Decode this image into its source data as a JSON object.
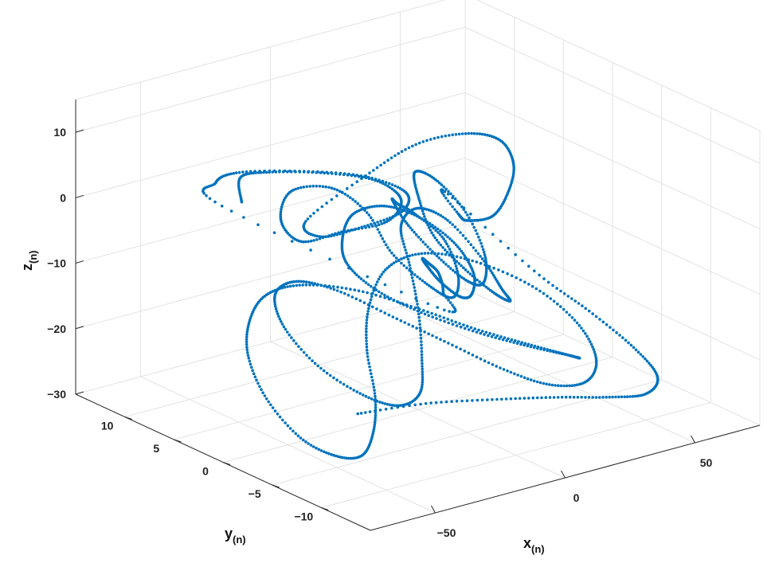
{
  "chart_data": {
    "type": "scatter",
    "title": "",
    "xlabel": "x",
    "xlabel_sub": "(n)",
    "ylabel": "y",
    "ylabel_sub": "(n)",
    "zlabel": "z",
    "zlabel_sub": "(n)",
    "xlim": [
      -75,
      75
    ],
    "ylim": [
      -15,
      15
    ],
    "zlim": [
      -30,
      15
    ],
    "x_ticks": [
      {
        "value": -50,
        "label": "−50"
      },
      {
        "value": 0,
        "label": "0"
      },
      {
        "value": 50,
        "label": "50"
      }
    ],
    "y_ticks": [
      {
        "value": 10,
        "label": "10"
      },
      {
        "value": 5,
        "label": "5"
      },
      {
        "value": 0,
        "label": "0"
      },
      {
        "value": -5,
        "label": "−5"
      },
      {
        "value": -10,
        "label": "−10"
      }
    ],
    "z_ticks": [
      {
        "value": 10,
        "label": "10"
      },
      {
        "value": 0,
        "label": "0"
      },
      {
        "value": -10,
        "label": "−10"
      },
      {
        "value": -20,
        "label": "−20"
      },
      {
        "value": -30,
        "label": "−30"
      }
    ],
    "grid": true,
    "view": "3d-box",
    "marker_color": "#0072BD",
    "series": [
      {
        "points_note_x_y_z": "",
        "points": [
          [
            -30,
            10,
            -2
          ],
          [
            -38,
            8,
            4
          ],
          [
            -42,
            4,
            8
          ],
          [
            -36,
            0,
            10
          ],
          [
            -24,
            -2,
            9
          ],
          [
            -14,
            -2,
            5
          ],
          [
            -12,
            0,
            0
          ],
          [
            -18,
            3,
            -3
          ],
          [
            -26,
            5,
            -5
          ],
          [
            -30,
            6,
            -2
          ],
          [
            -26,
            6,
            2
          ],
          [
            -18,
            4,
            3
          ],
          [
            -12,
            2,
            0
          ],
          [
            -10,
            0,
            -5
          ],
          [
            -4,
            -2,
            -9
          ],
          [
            2,
            -3,
            -11
          ],
          [
            8,
            -2,
            -9
          ],
          [
            10,
            0,
            -5
          ],
          [
            6,
            2,
            -2
          ],
          [
            0,
            2,
            0
          ],
          [
            -6,
            1,
            2
          ],
          [
            -8,
            -1,
            0
          ],
          [
            -4,
            -3,
            -4
          ],
          [
            4,
            -4,
            -8
          ],
          [
            14,
            -3,
            -10
          ],
          [
            22,
            -1,
            -8
          ],
          [
            26,
            2,
            -4
          ],
          [
            22,
            4,
            0
          ],
          [
            14,
            4,
            2
          ],
          [
            8,
            2,
            0
          ],
          [
            6,
            0,
            -4
          ],
          [
            10,
            -2,
            -8
          ],
          [
            18,
            -3,
            -12
          ],
          [
            28,
            -2,
            -15
          ],
          [
            36,
            1,
            -16
          ],
          [
            40,
            4,
            -14
          ],
          [
            38,
            7,
            -10
          ],
          [
            30,
            8,
            -8
          ],
          [
            20,
            7,
            -9
          ],
          [
            12,
            4,
            -12
          ],
          [
            4,
            1,
            -16
          ],
          [
            -6,
            -2,
            -20
          ],
          [
            -18,
            -5,
            -22
          ],
          [
            -30,
            -6,
            -22
          ],
          [
            -40,
            -5,
            -20
          ],
          [
            -46,
            -2,
            -17
          ],
          [
            -44,
            2,
            -14
          ],
          [
            -36,
            5,
            -12
          ],
          [
            -24,
            6,
            -12
          ],
          [
            -12,
            5,
            -14
          ],
          [
            -2,
            2,
            -17
          ],
          [
            8,
            -1,
            -20
          ],
          [
            18,
            -4,
            -23
          ],
          [
            28,
            -6,
            -25
          ],
          [
            38,
            -7,
            -25
          ],
          [
            46,
            -6,
            -23
          ],
          [
            50,
            -3,
            -20
          ],
          [
            48,
            1,
            -17
          ],
          [
            40,
            5,
            -15
          ],
          [
            28,
            7,
            -14
          ],
          [
            14,
            7,
            -15
          ],
          [
            0,
            5,
            -18
          ],
          [
            -12,
            2,
            -21
          ],
          [
            -24,
            -2,
            -24
          ],
          [
            -36,
            -5,
            -26
          ],
          [
            -48,
            -7,
            -27
          ],
          [
            -58,
            -7,
            -26
          ],
          [
            -64,
            -5,
            -24
          ],
          [
            -62,
            -1,
            -21
          ],
          [
            -54,
            3,
            -18
          ],
          [
            -42,
            6,
            -16
          ],
          [
            -28,
            8,
            -15
          ],
          [
            -14,
            8,
            -15
          ],
          [
            0,
            6,
            -16
          ],
          [
            12,
            3,
            -18
          ],
          [
            22,
            0,
            -20
          ],
          [
            30,
            -3,
            -21
          ],
          [
            34,
            -6,
            -21
          ],
          [
            32,
            -8,
            -20
          ],
          [
            24,
            -9,
            -18
          ],
          [
            12,
            -8,
            -16
          ],
          [
            0,
            -6,
            -14
          ],
          [
            -10,
            -3,
            -12
          ],
          [
            -16,
            0,
            -10
          ],
          [
            -16,
            3,
            -8
          ],
          [
            -10,
            5,
            -6
          ],
          [
            -2,
            6,
            -4
          ],
          [
            6,
            5,
            -3
          ],
          [
            12,
            3,
            -4
          ],
          [
            14,
            0,
            -6
          ],
          [
            10,
            -3,
            -8
          ],
          [
            2,
            -5,
            -9
          ],
          [
            -6,
            -6,
            -8
          ],
          [
            -10,
            -5,
            -6
          ],
          [
            -8,
            -3,
            -5
          ],
          [
            -2,
            -1,
            -6
          ],
          [
            4,
            0,
            -8
          ],
          [
            8,
            0,
            -10
          ],
          [
            6,
            -1,
            -12
          ],
          [
            0,
            -2,
            -13
          ],
          [
            -30,
            12,
            -4
          ],
          [
            -40,
            10,
            2
          ],
          [
            -46,
            6,
            7
          ],
          [
            -40,
            1,
            10
          ],
          [
            -28,
            -2,
            10
          ],
          [
            -16,
            -3,
            7
          ],
          [
            -10,
            -1,
            2
          ],
          [
            -14,
            2,
            -2
          ],
          [
            -22,
            4,
            -4
          ],
          [
            -28,
            4,
            -1
          ],
          [
            14,
            9,
            -2
          ],
          [
            22,
            6,
            4
          ],
          [
            26,
            2,
            8
          ],
          [
            24,
            -2,
            10
          ],
          [
            18,
            -5,
            9
          ],
          [
            12,
            -6,
            6
          ],
          [
            10,
            -5,
            2
          ],
          [
            12,
            -2,
            -1
          ],
          [
            16,
            0,
            -2
          ],
          [
            18,
            2,
            0
          ],
          [
            60,
            4,
            -18
          ],
          [
            66,
            0,
            -22
          ],
          [
            68,
            -4,
            -25
          ],
          [
            62,
            -8,
            -26
          ],
          [
            50,
            -10,
            -26
          ],
          [
            36,
            -10,
            -25
          ],
          [
            20,
            -9,
            -24
          ],
          [
            4,
            -7,
            -24
          ],
          [
            -12,
            -4,
            -25
          ],
          [
            -28,
            -1,
            -27
          ]
        ]
      }
    ]
  }
}
